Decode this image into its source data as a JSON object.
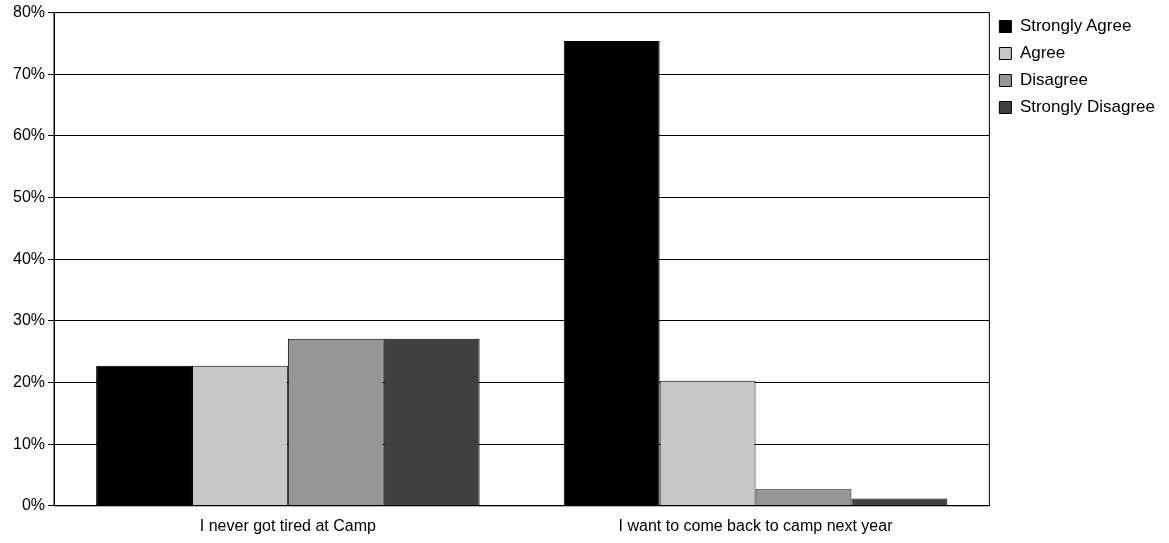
{
  "chart_data": {
    "type": "bar",
    "categories": [
      "I never got tired at Camp",
      "I want to come back to camp next year"
    ],
    "series": [
      {
        "name": "Strongly Agree",
        "color": "#000000",
        "values": [
          22.7,
          75.4
        ]
      },
      {
        "name": "Agree",
        "color": "#c8c8c8",
        "values": [
          22.7,
          20.3
        ]
      },
      {
        "name": "Disagree",
        "color": "#969696",
        "values": [
          27.1,
          2.7
        ]
      },
      {
        "name": "Strongly Disagree",
        "color": "#404040",
        "values": [
          27.1,
          1.2
        ]
      }
    ],
    "ylim": [
      0,
      80
    ],
    "yticks": [
      {
        "value": 0,
        "label": "0%"
      },
      {
        "value": 10,
        "label": "10%"
      },
      {
        "value": 20,
        "label": "20%"
      },
      {
        "value": 30,
        "label": "30%"
      },
      {
        "value": 40,
        "label": "40%"
      },
      {
        "value": 50,
        "label": "50%"
      },
      {
        "value": 60,
        "label": "60%"
      },
      {
        "value": 70,
        "label": "70%"
      },
      {
        "value": 80,
        "label": "80%"
      }
    ],
    "grid": "y",
    "legend": "top right"
  }
}
